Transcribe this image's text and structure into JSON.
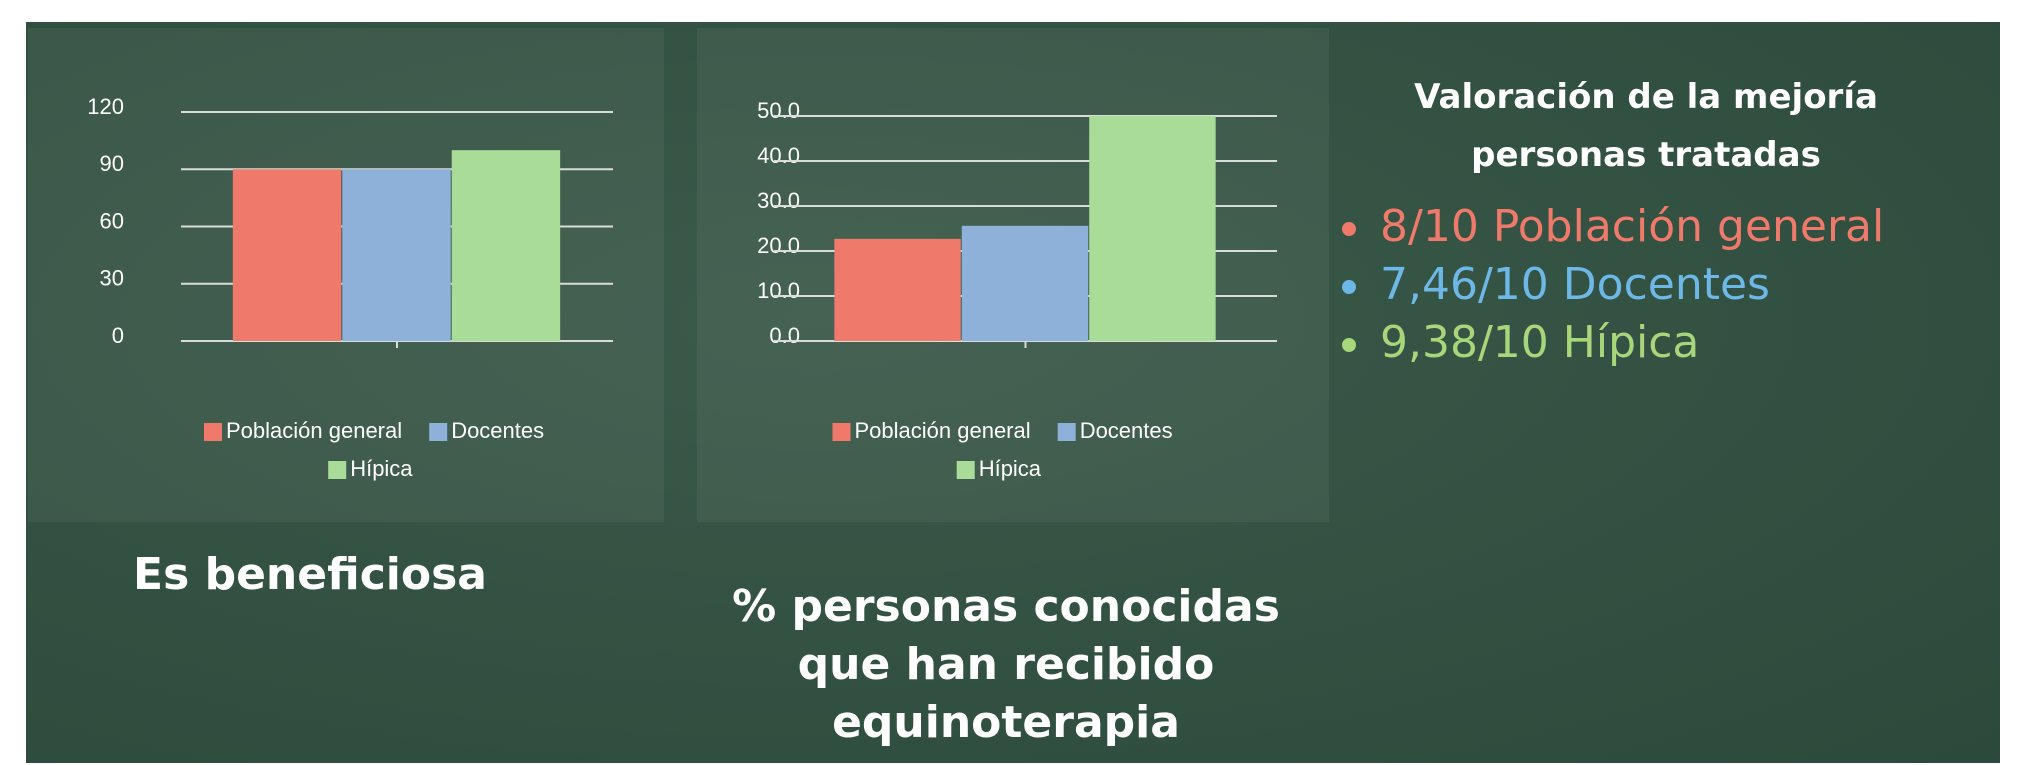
{
  "chart_data": [
    {
      "type": "bar",
      "title": "Es beneficiosa",
      "categories": [
        null
      ],
      "series": [
        {
          "name": "Población general",
          "color": "#ef7a6b",
          "values": [
            90
          ]
        },
        {
          "name": "Docentes",
          "color": "#8db1d9",
          "values": [
            90
          ]
        },
        {
          "name": "Hípica",
          "color": "#a9dc98",
          "values": [
            100
          ]
        }
      ],
      "ylim": [
        0,
        120
      ],
      "yticks": [
        0,
        30,
        60,
        90,
        120
      ],
      "grid": true,
      "legend": "bottom"
    },
    {
      "type": "bar",
      "title": "% personas conocidas que han recibido equinoterapia",
      "categories": [
        null
      ],
      "series": [
        {
          "name": "Población general",
          "color": "#ef7a6b",
          "values": [
            22.7
          ]
        },
        {
          "name": "Docentes",
          "color": "#8db1d9",
          "values": [
            25.6
          ]
        },
        {
          "name": "Hípica",
          "color": "#a9dc98",
          "values": [
            50
          ]
        }
      ],
      "ylim": [
        0,
        50
      ],
      "yticks": [
        {
          "value": 0,
          "label": "0.0"
        },
        {
          "value": 10,
          "label": "10.0"
        },
        {
          "value": 20,
          "label": "20.0"
        },
        {
          "value": 30,
          "label": "30.0"
        },
        {
          "value": 40,
          "label": "40.0"
        },
        {
          "value": 50,
          "label": "50.0"
        }
      ],
      "grid": true,
      "legend": "bottom"
    }
  ],
  "valoracion": {
    "title": "Valoración de la mejoría personas tratadas",
    "items": [
      {
        "text": "8/10 Población general",
        "color": "#ef7a6b"
      },
      {
        "text": "7,46/10 Docentes",
        "color": "#6db8e6"
      },
      {
        "text": "9,38/10 Hípica",
        "color": "#a8d67a"
      }
    ]
  }
}
